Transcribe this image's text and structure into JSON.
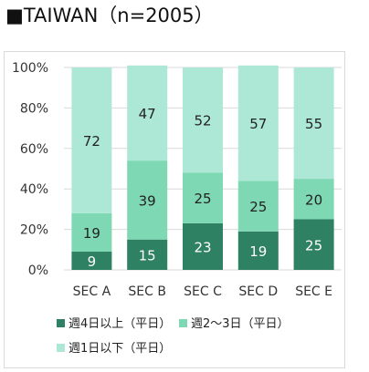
{
  "title": "■TAIWAN（n=2005）",
  "colors": {
    "series_0": "#2e8163",
    "series_1": "#7fd8b4",
    "series_2": "#ade8d6",
    "grid": "#d9d9d9"
  },
  "chart_data": {
    "type": "bar",
    "stacked": true,
    "categories": [
      "SEC A",
      "SEC B",
      "SEC C",
      "SEC D",
      "SEC E"
    ],
    "series": [
      {
        "name": "週4日以上（平日）",
        "values": [
          9,
          15,
          23,
          19,
          25
        ]
      },
      {
        "name": "週2～3日（平日）",
        "values": [
          19,
          39,
          25,
          25,
          20
        ]
      },
      {
        "name": "週1日以下（平日）",
        "values": [
          72,
          47,
          52,
          57,
          55
        ]
      }
    ],
    "ylim": [
      0,
      100
    ],
    "yticks": [
      "0%",
      "20%",
      "40%",
      "60%",
      "80%",
      "100%"
    ],
    "grid": true,
    "legend_position": "bottom"
  }
}
